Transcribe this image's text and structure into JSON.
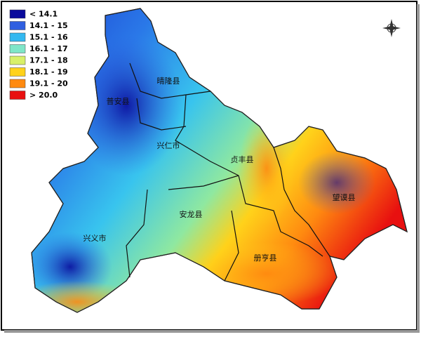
{
  "legend": {
    "items": [
      {
        "label": "< 14.1",
        "color": "#0a0a9c"
      },
      {
        "label": "14.1 - 15",
        "color": "#2f5fe0"
      },
      {
        "label": "15.1 - 16",
        "color": "#33b8f0"
      },
      {
        "label": "16.1 - 17",
        "color": "#7fe6c8"
      },
      {
        "label": "17.1 - 18",
        "color": "#d8f06a"
      },
      {
        "label": "18.1 - 19",
        "color": "#ffd21a"
      },
      {
        "label": "19.1 - 20",
        "color": "#ff8a10"
      },
      {
        "label": "> 20.0",
        "color": "#e81010"
      }
    ]
  },
  "map": {
    "labels": [
      {
        "text": "晴隆县"
      },
      {
        "text": "普安县"
      },
      {
        "text": "兴仁市"
      },
      {
        "text": "贞丰县"
      },
      {
        "text": "望谟县"
      },
      {
        "text": "安龙县"
      },
      {
        "text": "兴义市"
      },
      {
        "text": "册亨县"
      }
    ]
  }
}
